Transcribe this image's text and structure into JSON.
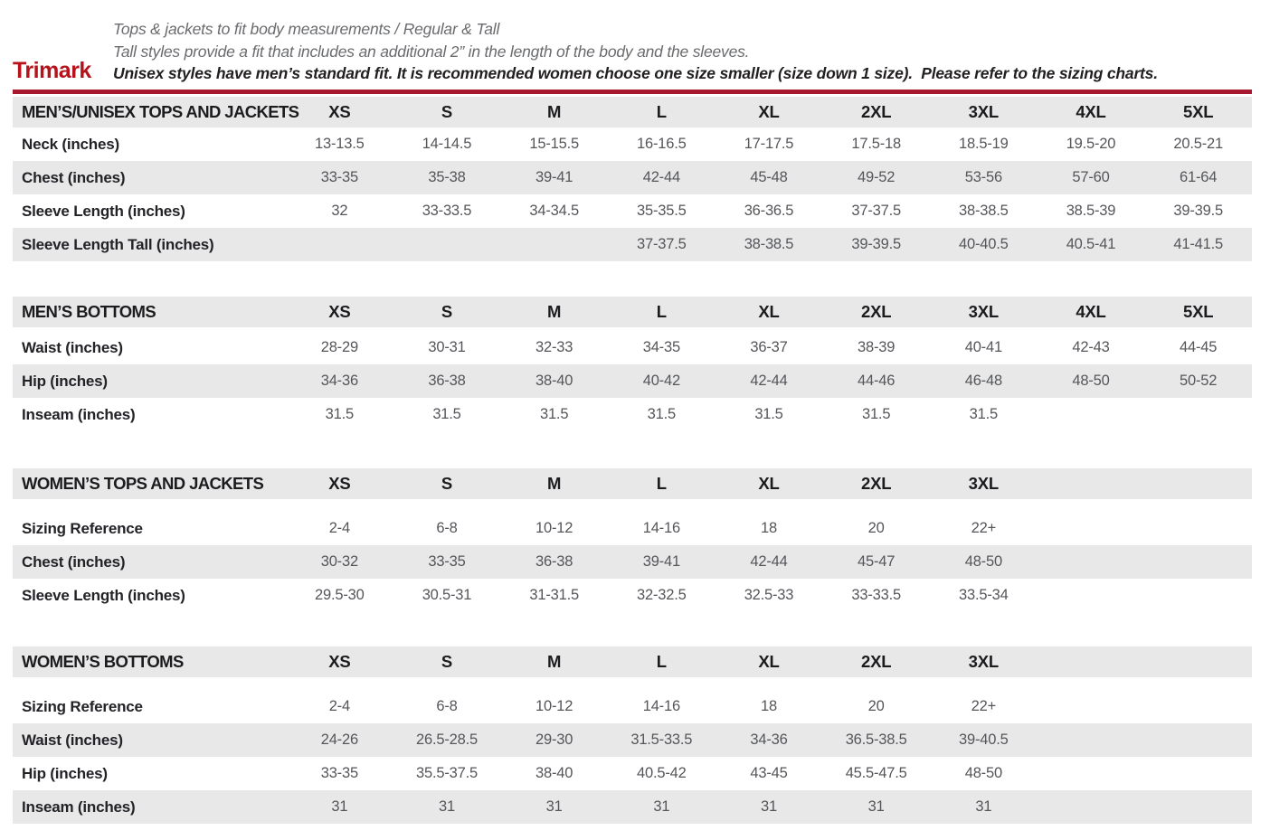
{
  "header": {
    "brand": "Trimark",
    "line1": "Tops & jackets to fit body measurements / Regular & Tall",
    "line2": "Tall styles provide a fit that includes an additional 2” in the length of the body and the sleeves.",
    "line3": "Unisex styles have men’s standard fit. It is recommended women choose one size smaller (size down 1 size).  Please refer to the sizing charts."
  },
  "colors": {
    "brand_red": "#B5121B",
    "rule_red": "#A6192E",
    "row_gray": "#E8E8E9",
    "label_dark": "#232227",
    "value_gray": "#55565A"
  },
  "tables": [
    {
      "title": "MEN’S/UNISEX TOPS AND JACKETS",
      "sizes": [
        "XS",
        "S",
        "M",
        "L",
        "XL",
        "2XL",
        "3XL",
        "4XL",
        "5XL"
      ],
      "rows": [
        {
          "label": "Neck (inches)",
          "values": [
            "13-13.5",
            "14-14.5",
            "15-15.5",
            "16-16.5",
            "17-17.5",
            "17.5-18",
            "18.5-19",
            "19.5-20",
            "20.5-21"
          ]
        },
        {
          "label": "Chest (inches)",
          "values": [
            "33-35",
            "35-38",
            "39-41",
            "42-44",
            "45-48",
            "49-52",
            "53-56",
            "57-60",
            "61-64"
          ]
        },
        {
          "label": "Sleeve Length (inches)",
          "values": [
            "32",
            "33-33.5",
            "34-34.5",
            "35-35.5",
            "36-36.5",
            "37-37.5",
            "38-38.5",
            "38.5-39",
            "39-39.5"
          ]
        },
        {
          "label": "Sleeve Length Tall (inches)",
          "values": [
            "",
            "",
            "",
            "37-37.5",
            "38-38.5",
            "39-39.5",
            "40-40.5",
            "40.5-41",
            "41-41.5"
          ]
        }
      ]
    },
    {
      "title": "MEN’S BOTTOMS",
      "sizes": [
        "XS",
        "S",
        "M",
        "L",
        "XL",
        "2XL",
        "3XL",
        "4XL",
        "5XL"
      ],
      "rows": [
        {
          "label": "Waist (inches)",
          "values": [
            "28-29",
            "30-31",
            "32-33",
            "34-35",
            "36-37",
            "38-39",
            "40-41",
            "42-43",
            "44-45"
          ]
        },
        {
          "label": "Hip (inches)",
          "values": [
            "34-36",
            "36-38",
            "38-40",
            "40-42",
            "42-44",
            "44-46",
            "46-48",
            "48-50",
            "50-52"
          ]
        },
        {
          "label": "Inseam (inches)",
          "values": [
            "31.5",
            "31.5",
            "31.5",
            "31.5",
            "31.5",
            "31.5",
            "31.5",
            "",
            ""
          ]
        }
      ]
    },
    {
      "title": "WOMEN’S TOPS AND JACKETS",
      "sizes": [
        "XS",
        "S",
        "M",
        "L",
        "XL",
        "2XL",
        "3XL"
      ],
      "rows": [
        {
          "label": "Sizing Reference",
          "values": [
            "2-4",
            "6-8",
            "10-12",
            "14-16",
            "18",
            "20",
            "22+"
          ]
        },
        {
          "label": "Chest (inches)",
          "values": [
            "30-32",
            "33-35",
            "36-38",
            "39-41",
            "42-44",
            "45-47",
            "48-50"
          ]
        },
        {
          "label": "Sleeve Length (inches)",
          "values": [
            "29.5-30",
            "30.5-31",
            "31-31.5",
            "32-32.5",
            "32.5-33",
            "33-33.5",
            "33.5-34"
          ]
        }
      ]
    },
    {
      "title": "WOMEN’S BOTTOMS",
      "sizes": [
        "XS",
        "S",
        "M",
        "L",
        "XL",
        "2XL",
        "3XL"
      ],
      "rows": [
        {
          "label": "Sizing Reference",
          "values": [
            "2-4",
            "6-8",
            "10-12",
            "14-16",
            "18",
            "20",
            "22+"
          ]
        },
        {
          "label": "Waist (inches)",
          "values": [
            "24-26",
            "26.5-28.5",
            "29-30",
            "31.5-33.5",
            "34-36",
            "36.5-38.5",
            "39-40.5"
          ]
        },
        {
          "label": "Hip (inches)",
          "values": [
            "33-35",
            "35.5-37.5",
            "38-40",
            "40.5-42",
            "43-45",
            "45.5-47.5",
            "48-50"
          ]
        },
        {
          "label": "Inseam (inches)",
          "values": [
            "31",
            "31",
            "31",
            "31",
            "31",
            "31",
            "31"
          ]
        }
      ]
    }
  ]
}
